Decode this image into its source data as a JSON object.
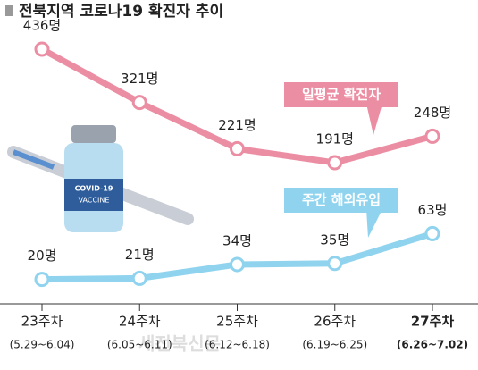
{
  "chart_data": {
    "type": "line",
    "title": "전북지역 코로나19 확진자 추이",
    "categories": [
      "23주차",
      "24주차",
      "25주차",
      "26주차",
      "27주차"
    ],
    "category_ranges": [
      "(5.29~6.04)",
      "(6.05~6.11)",
      "(6.12~6.18)",
      "(6.19~6.25)",
      "(6.26~7.02)"
    ],
    "series": [
      {
        "name": "일평균 확진자",
        "color": "#ec8ea3",
        "values": [
          436,
          321,
          221,
          191,
          248
        ],
        "value_labels": [
          "436명",
          "321명",
          "221명",
          "191명",
          "248명"
        ]
      },
      {
        "name": "주간 해외유입",
        "color": "#8fd3ee",
        "axis": "y2",
        "values": [
          20,
          21,
          34,
          35,
          63
        ],
        "value_labels": [
          "20명",
          "21명",
          "34명",
          "35명",
          "63명"
        ]
      }
    ],
    "ylim": [
      -114,
      465
    ],
    "y2lim": [
      -3,
      249
    ],
    "vial_label": [
      "COVID-19",
      "VACCINE"
    ],
    "watermark": "새전북신문"
  }
}
